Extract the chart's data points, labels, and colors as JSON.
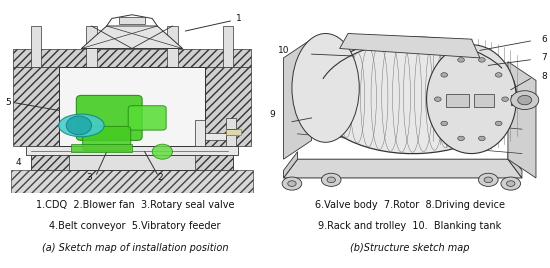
{
  "background_color": "#ffffff",
  "fig_width": 5.5,
  "fig_height": 2.68,
  "dpi": 100,
  "left_caption_line1": "1.CDQ  2.Blower fan  3.Rotary seal valve",
  "left_caption_line2": "4.Belt conveyor  5.Vibratory feeder",
  "left_caption_line3": "(a) Sketch map of installation position",
  "right_caption_line1": "6.Valve body  7.Rotor  8.Driving device",
  "right_caption_line2": "9.Rack and trolley  10.  Blanking tank",
  "right_caption_line3": "(b)Structure sketch map",
  "caption_fontsize": 7.0,
  "caption_color": "#111111",
  "sketch_color": "#888888",
  "line_color": "#333333"
}
